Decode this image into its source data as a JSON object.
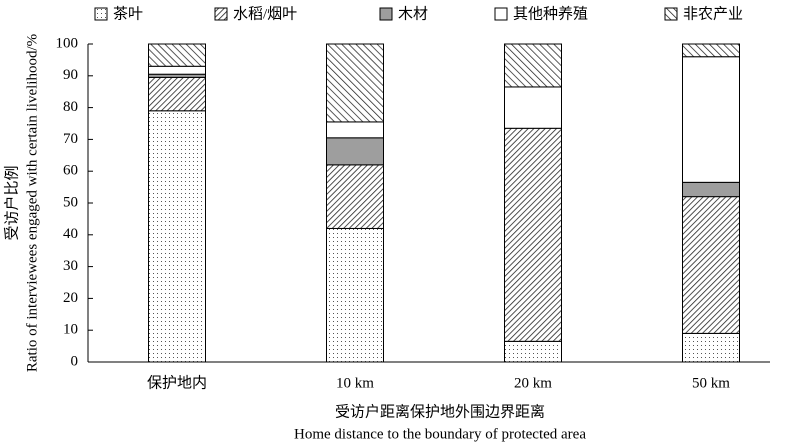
{
  "chart_data": {
    "type": "stacked_bar",
    "categories": [
      "保护地内",
      "10 km",
      "20 km",
      "50 km"
    ],
    "series": [
      {
        "name": "茶叶",
        "color": "#ffffff",
        "pattern": "dots",
        "values": [
          79,
          42,
          6.5,
          9
        ]
      },
      {
        "name": "水稻/烟叶",
        "color": "#ffffff",
        "pattern": "dense-hatch",
        "values": [
          10.5,
          20,
          67,
          43
        ]
      },
      {
        "name": "木材",
        "color": "#9e9e9e",
        "pattern": "solid",
        "values": [
          1,
          8.5,
          0,
          4.5
        ]
      },
      {
        "name": "其他种养殖",
        "color": "#ffffff",
        "pattern": "solid",
        "values": [
          2.5,
          5,
          13,
          39.5
        ]
      },
      {
        "name": "非农产业",
        "color": "#ffffff",
        "pattern": "hatch",
        "values": [
          7,
          24.5,
          13.5,
          4
        ]
      }
    ],
    "ylabel": [
      "受访户比例",
      "Ratio of interviewees engaged with certain livelihood/%"
    ],
    "xlabel": [
      "受访户距离保护地外围边界距离",
      "Home distance to the boundary of protected area"
    ],
    "ylim": [
      0,
      100
    ],
    "yticks": [
      0,
      10,
      20,
      30,
      40,
      50,
      60,
      70,
      80,
      90,
      100
    ],
    "legend": "top",
    "grid": false
  }
}
